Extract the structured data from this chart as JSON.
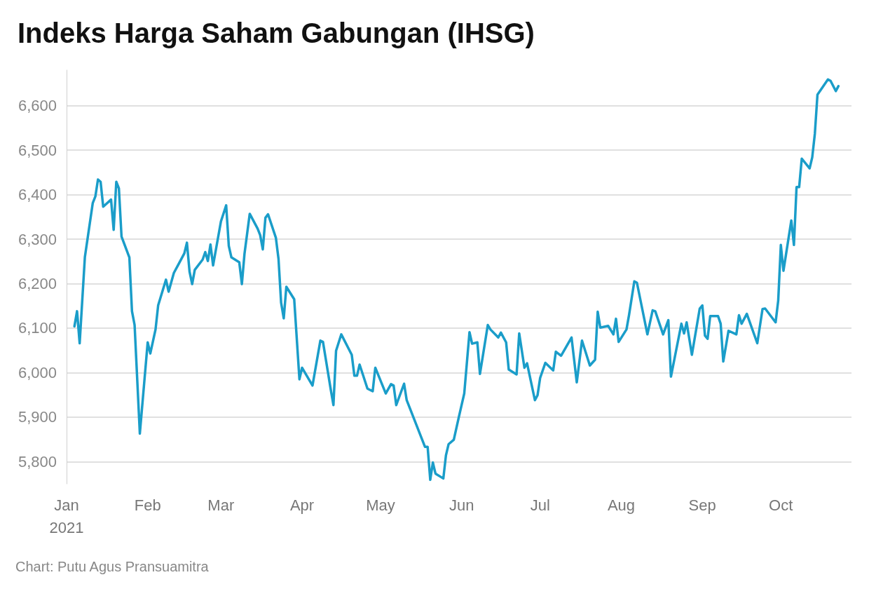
{
  "chart_data": {
    "type": "line",
    "title": "Indeks Harga Saham Gabungan (IHSG)",
    "annotations": [
      "Chart: Putu Agus Pransuamitra"
    ],
    "x": [
      "2021-01-04",
      "2021-01-05",
      "2021-01-06",
      "2021-01-08",
      "2021-01-11",
      "2021-01-12",
      "2021-01-13",
      "2021-01-14",
      "2021-01-15",
      "2021-01-18",
      "2021-01-19",
      "2021-01-20",
      "2021-01-21",
      "2021-01-22",
      "2021-01-25",
      "2021-01-26",
      "2021-01-27",
      "2021-01-29",
      "2021-02-01",
      "2021-02-02",
      "2021-02-04",
      "2021-02-05",
      "2021-02-08",
      "2021-02-09",
      "2021-02-11",
      "2021-02-15",
      "2021-02-16",
      "2021-02-17",
      "2021-02-18",
      "2021-02-19",
      "2021-02-22",
      "2021-02-23",
      "2021-02-24",
      "2021-02-25",
      "2021-02-26",
      "2021-03-01",
      "2021-03-03",
      "2021-03-04",
      "2021-03-05",
      "2021-03-08",
      "2021-03-09",
      "2021-03-10",
      "2021-03-12",
      "2021-03-15",
      "2021-03-16",
      "2021-03-17",
      "2021-03-18",
      "2021-03-19",
      "2021-03-22",
      "2021-03-23",
      "2021-03-24",
      "2021-03-25",
      "2021-03-26",
      "2021-03-29",
      "2021-03-31",
      "2021-04-01",
      "2021-04-05",
      "2021-04-08",
      "2021-04-09",
      "2021-04-12",
      "2021-04-13",
      "2021-04-14",
      "2021-04-16",
      "2021-04-20",
      "2021-04-21",
      "2021-04-22",
      "2021-04-23",
      "2021-04-26",
      "2021-04-28",
      "2021-04-29",
      "2021-05-03",
      "2021-05-05",
      "2021-05-06",
      "2021-05-07",
      "2021-05-10",
      "2021-05-11",
      "2021-05-18",
      "2021-05-19",
      "2021-05-20",
      "2021-05-21",
      "2021-05-22",
      "2021-05-25",
      "2021-05-26",
      "2021-05-27",
      "2021-05-29",
      "2021-05-31",
      "2021-06-02",
      "2021-06-04",
      "2021-06-05",
      "2021-06-07",
      "2021-06-08",
      "2021-06-11",
      "2021-06-12",
      "2021-06-15",
      "2021-06-16",
      "2021-06-18",
      "2021-06-19",
      "2021-06-22",
      "2021-06-23",
      "2021-06-25",
      "2021-06-26",
      "2021-06-29",
      "2021-06-30",
      "2021-07-01",
      "2021-07-03",
      "2021-07-06",
      "2021-07-07",
      "2021-07-09",
      "2021-07-13",
      "2021-07-15",
      "2021-07-17",
      "2021-07-20",
      "2021-07-22",
      "2021-07-23",
      "2021-07-24",
      "2021-07-27",
      "2021-07-29",
      "2021-07-30",
      "2021-07-31",
      "2021-08-03",
      "2021-08-04",
      "2021-08-06",
      "2021-08-07",
      "2021-08-11",
      "2021-08-13",
      "2021-08-14",
      "2021-08-17",
      "2021-08-19",
      "2021-08-20",
      "2021-08-24",
      "2021-08-25",
      "2021-08-26",
      "2021-08-28",
      "2021-08-31",
      "2021-09-01",
      "2021-09-02",
      "2021-09-03",
      "2021-09-04",
      "2021-09-07",
      "2021-09-08",
      "2021-09-09",
      "2021-09-11",
      "2021-09-14",
      "2021-09-15",
      "2021-09-16",
      "2021-09-18",
      "2021-09-22",
      "2021-09-24",
      "2021-09-25",
      "2021-09-29",
      "2021-09-30",
      "2021-10-01",
      "2021-10-02",
      "2021-10-05",
      "2021-10-06",
      "2021-10-07",
      "2021-10-08",
      "2021-10-09",
      "2021-10-12",
      "2021-10-13",
      "2021-10-14",
      "2021-10-15",
      "2021-10-19",
      "2021-10-20",
      "2021-10-22",
      "2021-10-23"
    ],
    "series": [
      {
        "color": "#1a9dc9",
        "values": [
          6104,
          6138,
          6066,
          6260,
          6381,
          6396,
          6434,
          6429,
          6373,
          6389,
          6321,
          6429,
          6414,
          6306,
          6259,
          6138,
          6107,
          5863,
          6068,
          6043,
          6097,
          6151,
          6209,
          6182,
          6224,
          6268,
          6292,
          6227,
          6199,
          6231,
          6254,
          6271,
          6251,
          6288,
          6241,
          6340,
          6376,
          6285,
          6259,
          6248,
          6199,
          6267,
          6357,
          6324,
          6309,
          6277,
          6348,
          6356,
          6303,
          6256,
          6157,
          6122,
          6193,
          6165,
          5985,
          6011,
          5971,
          6072,
          6069,
          5961,
          5927,
          6049,
          6086,
          6040,
          5993,
          5993,
          6018,
          5964,
          5958,
          6011,
          5953,
          5974,
          5971,
          5927,
          5975,
          5938,
          5833,
          5833,
          5759,
          5798,
          5773,
          5762,
          5814,
          5839,
          5849,
          5902,
          5953,
          6091,
          6065,
          6068,
          5997,
          6107,
          6097,
          6079,
          6090,
          6068,
          6007,
          5996,
          6088,
          6011,
          6021,
          5938,
          5949,
          5988,
          6022,
          6005,
          6047,
          6038,
          6079,
          5978,
          6072,
          6016,
          6029,
          6137,
          6101,
          6105,
          6086,
          6121,
          6069,
          6097,
          6130,
          6205,
          6202,
          6086,
          6140,
          6138,
          6086,
          6118,
          5991,
          6110,
          6088,
          6113,
          6040,
          6144,
          6151,
          6083,
          6076,
          6127,
          6127,
          6110,
          6025,
          6094,
          6086,
          6129,
          6110,
          6132,
          6066,
          6143,
          6144,
          6113,
          6162,
          6287,
          6229,
          6342,
          6287,
          6417,
          6417,
          6481,
          6459,
          6484,
          6537,
          6625,
          6659,
          6656,
          6633,
          6644
        ]
      }
    ],
    "xlim": [
      "2021-01-01",
      "2021-10-28"
    ],
    "xticks": [
      {
        "value": "2021-01-01",
        "label": "Jan\n2021"
      },
      {
        "value": "2021-02-01",
        "label": "Feb"
      },
      {
        "value": "2021-03-01",
        "label": "Mar"
      },
      {
        "value": "2021-04-01",
        "label": "Apr"
      },
      {
        "value": "2021-05-01",
        "label": "May"
      },
      {
        "value": "2021-06-01",
        "label": "Jun"
      },
      {
        "value": "2021-07-01",
        "label": "Jul"
      },
      {
        "value": "2021-08-01",
        "label": "Aug"
      },
      {
        "value": "2021-09-01",
        "label": "Sep"
      },
      {
        "value": "2021-10-01",
        "label": "Oct"
      }
    ],
    "ylim": [
      5750,
      6680
    ],
    "yticks": [
      {
        "value": 5800,
        "label": "5,800"
      },
      {
        "value": 5900,
        "label": "5,900"
      },
      {
        "value": 6000,
        "label": "6,000"
      },
      {
        "value": 6100,
        "label": "6,100"
      },
      {
        "value": 6200,
        "label": "6,200"
      },
      {
        "value": 6300,
        "label": "6,300"
      },
      {
        "value": 6400,
        "label": "6,400"
      },
      {
        "value": 6500,
        "label": "6,500"
      },
      {
        "value": 6600,
        "label": "6,600"
      }
    ],
    "grid": "y",
    "marker": "none",
    "line_style": "solid"
  }
}
